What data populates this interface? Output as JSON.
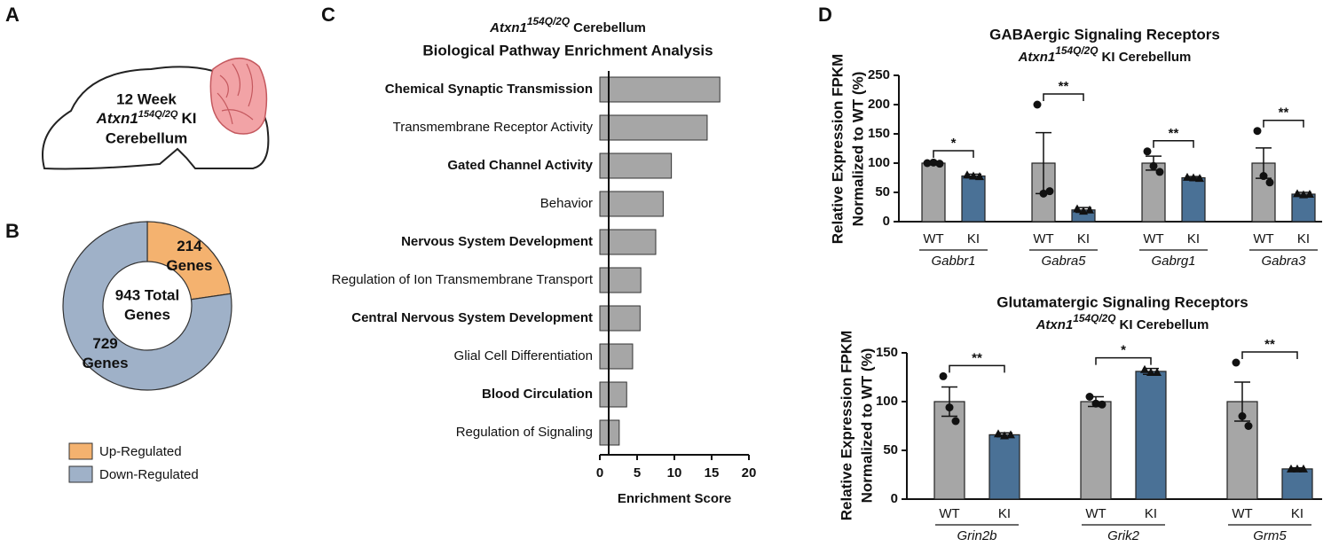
{
  "panel_labels": [
    "A",
    "B",
    "C",
    "D"
  ],
  "diagram": {
    "line1": "12 Week",
    "gene": "Atxn1",
    "allele": "154Q/2Q",
    "suffix": "KI",
    "line3": "Cerebellum"
  },
  "chart_data": [
    {
      "type": "pie",
      "donut": true,
      "categories": [
        "Up-Regulated",
        "Down-Regulated"
      ],
      "values": [
        214,
        729
      ],
      "value_labels": [
        "214 Genes",
        "729 Genes"
      ],
      "colors": [
        "#f4b26f",
        "#9fb1c8"
      ],
      "center_label": [
        "943 Total",
        "Genes"
      ]
    },
    {
      "type": "hbar",
      "title_gene": "Atxn1",
      "title_allele": "154Q/2Q",
      "title_rest": "Cerebellum",
      "subtitle": "Biological Pathway Enrichment Analysis",
      "categories": [
        "Chemical Synaptic Transmission",
        "Transmembrane Receptor Activity",
        "Gated Channel Activity",
        "Behavior",
        "Nervous System Development",
        "Regulation of Ion Transmembrane Transport",
        "Central Nervous System Development",
        "Glial Cell Differentiation",
        "Blood Circulation",
        "Regulation of Signaling"
      ],
      "bold": [
        true,
        false,
        true,
        false,
        true,
        false,
        true,
        false,
        true,
        false
      ],
      "values": [
        16.1,
        14.4,
        9.6,
        8.5,
        7.5,
        5.5,
        5.4,
        4.4,
        3.6,
        2.6
      ],
      "color": "#a6a6a6",
      "xlabel": "Enrichment Score",
      "xlim": [
        0,
        20
      ],
      "xticks": [
        0,
        5,
        10,
        15,
        20
      ]
    },
    {
      "type": "grouped_bar",
      "title": "GABAergic Signaling Receptors",
      "subtitle_gene": "Atxn1",
      "subtitle_allele": "154Q/2Q",
      "subtitle_rest": "KI Cerebellum",
      "ylabel": [
        "Relative Expression FPKM",
        "Normalized to WT (%)"
      ],
      "categories": [
        "Gabbr1",
        "Gabra5",
        "Gabrg1",
        "Gabra3"
      ],
      "series": [
        {
          "name": "WT",
          "color": "#a6a6a6",
          "values": [
            100,
            100,
            100,
            100
          ],
          "errors": [
            3,
            52,
            12,
            26
          ],
          "points": [
            [
              100,
              101,
              99
            ],
            [
              200,
              48,
              52
            ],
            [
              120,
              95,
              85
            ],
            [
              155,
              78,
              67
            ]
          ]
        },
        {
          "name": "KI",
          "color": "#4a7196",
          "values": [
            78,
            20,
            75,
            47
          ],
          "errors": [
            3,
            4,
            2,
            3
          ],
          "points": [
            [
              80,
              78,
              77
            ],
            [
              22,
              18,
              20
            ],
            [
              76,
              75,
              74
            ],
            [
              48,
              46,
              47
            ]
          ]
        }
      ],
      "significance": [
        "*",
        "**",
        "**",
        "**"
      ],
      "ylim": [
        0,
        250
      ],
      "yticks": [
        0,
        50,
        100,
        150,
        200,
        250
      ]
    },
    {
      "type": "grouped_bar",
      "title": "Glutamatergic Signaling Receptors",
      "subtitle_gene": "Atxn1",
      "subtitle_allele": "154Q/2Q",
      "subtitle_rest": "KI Cerebellum",
      "ylabel": [
        "Relative Expression FPKM",
        "Normalized to WT (%)"
      ],
      "categories": [
        "Grin2b",
        "Grik2",
        "Grm5"
      ],
      "series": [
        {
          "name": "WT",
          "color": "#a6a6a6",
          "values": [
            100,
            100,
            100
          ],
          "errors": [
            15,
            5,
            20
          ],
          "points": [
            [
              126,
              94,
              80
            ],
            [
              105,
              98,
              97
            ],
            [
              140,
              85,
              75
            ]
          ]
        },
        {
          "name": "KI",
          "color": "#4a7196",
          "values": [
            66,
            131,
            31
          ],
          "errors": [
            2,
            3,
            1
          ],
          "points": [
            [
              67,
              65,
              66
            ],
            [
              133,
              130,
              130
            ],
            [
              31,
              31,
              31
            ]
          ]
        }
      ],
      "significance": [
        "**",
        "*",
        "**"
      ],
      "ylim": [
        0,
        150
      ],
      "yticks": [
        0,
        50,
        100,
        150
      ]
    }
  ]
}
